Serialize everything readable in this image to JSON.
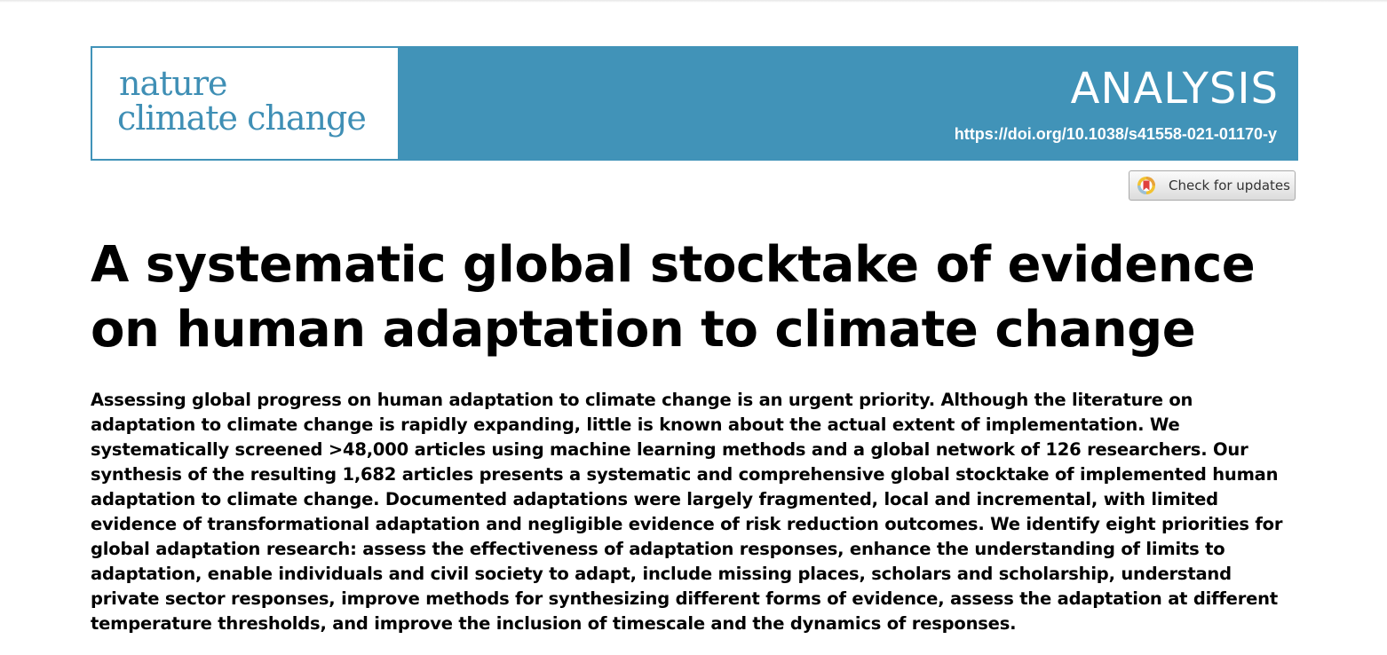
{
  "journal": {
    "logo_line1": "nature",
    "logo_line2": "climate change",
    "brand_color": "#4193b8",
    "logo_text_color": "#3f8fb5"
  },
  "header": {
    "article_type": "ANALYSIS",
    "doi": "https://doi.org/10.1038/s41558-021-01170-y"
  },
  "updates_button": {
    "label": "Check for updates",
    "icon": "crossmark-icon"
  },
  "article": {
    "title": "A systematic global stocktake of evidence on human adaptation to climate change",
    "abstract": "Assessing global progress on human adaptation to climate change is an urgent priority. Although the literature on adaptation to climate change is rapidly expanding, little is known about the actual extent of implementation. We systematically screened >48,000 articles using machine learning methods and a global network of 126 researchers. Our synthesis of the resulting 1,682 articles presents a systematic and comprehensive global stocktake of implemented human adaptation to climate change. Documented adaptations were largely fragmented, local and incremental, with limited evidence of transformational adaptation and negligible evidence of risk reduction outcomes. We identify eight priorities for global adaptation research: assess the effectiveness of adaptation responses, enhance the understanding of limits to adaptation, enable individuals and civil society to adapt, include missing places, scholars and scholarship, understand private sector responses, improve methods for synthesizing different forms of evidence, assess the adaptation at different temperature thresholds, and improve the inclusion of timescale and the dynamics of responses."
  }
}
